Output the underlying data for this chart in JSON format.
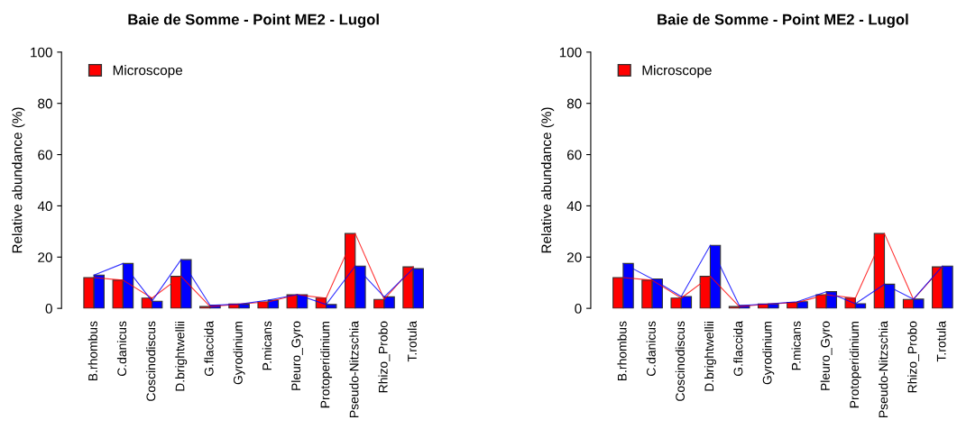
{
  "chart_data": [
    {
      "type": "bar",
      "title": "Baie de Somme - Point ME2 - Lugol",
      "ylabel": "Relative abundance (%)",
      "categories": [
        "B.rhombus",
        "C.danicus",
        "Coscinodiscus",
        "D.brightwellii",
        "G.flaccida",
        "Gyrodinium",
        "P.micans",
        "Pleuro_Gyro",
        "Protoperidinium",
        "Pseudo-Nitzschia",
        "Rhizo_Probo",
        "T.rotula"
      ],
      "series": [
        {
          "name": "Microscope",
          "color": "#ff0000",
          "values": [
            12,
            11,
            4,
            12.5,
            0.7,
            1.7,
            2.5,
            5.3,
            4,
            29.2,
            3.5,
            16.2
          ]
        },
        {
          "color": "#0000ff",
          "values": [
            13,
            17.5,
            2.8,
            19,
            1.2,
            1.6,
            3.2,
            5.3,
            1.5,
            16.5,
            4.5,
            15.5
          ]
        },
        {
          "type": "line",
          "color": "#ff0000",
          "values": [
            12,
            11,
            4,
            12.5,
            0.7,
            1.7,
            2.5,
            5.3,
            4,
            29.2,
            3.5,
            16.2
          ]
        },
        {
          "type": "line",
          "color": "#0000ff",
          "values": [
            13,
            17.5,
            2.8,
            19,
            1.2,
            1.6,
            3.2,
            5.3,
            1.5,
            16.5,
            4.5,
            15.5
          ]
        }
      ],
      "ylim": [
        0,
        100
      ],
      "yticks": [
        0,
        20,
        40,
        60,
        80,
        100
      ],
      "legend": "top left",
      "grid": false
    },
    {
      "type": "bar",
      "title": "Baie de Somme - Point ME2 - Lugol",
      "ylabel": "Relative abundance (%)",
      "categories": [
        "B.rhombus",
        "C.danicus",
        "Coscinodiscus",
        "D.brightwellii",
        "G.flaccida",
        "Gyrodinium",
        "P.micans",
        "Pleuro_Gyro",
        "Protoperidinium",
        "Pseudo-Nitzschia",
        "Rhizo_Probo",
        "T.rotula"
      ],
      "series": [
        {
          "name": "Microscope",
          "color": "#ff0000",
          "values": [
            12,
            11,
            4,
            12.5,
            0.7,
            1.7,
            2.3,
            5.3,
            4,
            29.2,
            3.5,
            16.2
          ]
        },
        {
          "color": "#0000ff",
          "values": [
            17.5,
            11.5,
            4.6,
            24.6,
            1.1,
            1.7,
            2.6,
            6.5,
            1.8,
            9.4,
            3.6,
            16.5
          ]
        },
        {
          "type": "line",
          "color": "#ff0000",
          "values": [
            12,
            11,
            4,
            12.5,
            0.7,
            1.7,
            2.3,
            5.3,
            4,
            29.2,
            3.5,
            16.2
          ]
        },
        {
          "type": "line",
          "color": "#0000ff",
          "values": [
            17.5,
            11.5,
            4.6,
            24.6,
            1.1,
            1.7,
            2.6,
            6.5,
            1.8,
            9.4,
            3.6,
            16.5
          ]
        }
      ],
      "ylim": [
        0,
        100
      ],
      "yticks": [
        0,
        20,
        40,
        60,
        80,
        100
      ],
      "legend": "top left",
      "grid": false
    }
  ]
}
